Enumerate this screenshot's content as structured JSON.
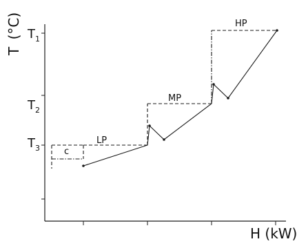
{
  "axes": {
    "y_title": {
      "main": "T",
      "unit": "(°C)"
    },
    "x_title": "H (kW)"
  },
  "temperature_labels": [
    {
      "letter": "T",
      "subscript": "1"
    },
    {
      "letter": "T",
      "subscript": "2"
    },
    {
      "letter": "T",
      "subscript": "3"
    }
  ],
  "stages": {
    "lp": "LP",
    "mp": "MP",
    "hp": "HP",
    "c": "c"
  },
  "colors": {
    "line": "#1a1a1a",
    "background": "#ffffff"
  }
}
